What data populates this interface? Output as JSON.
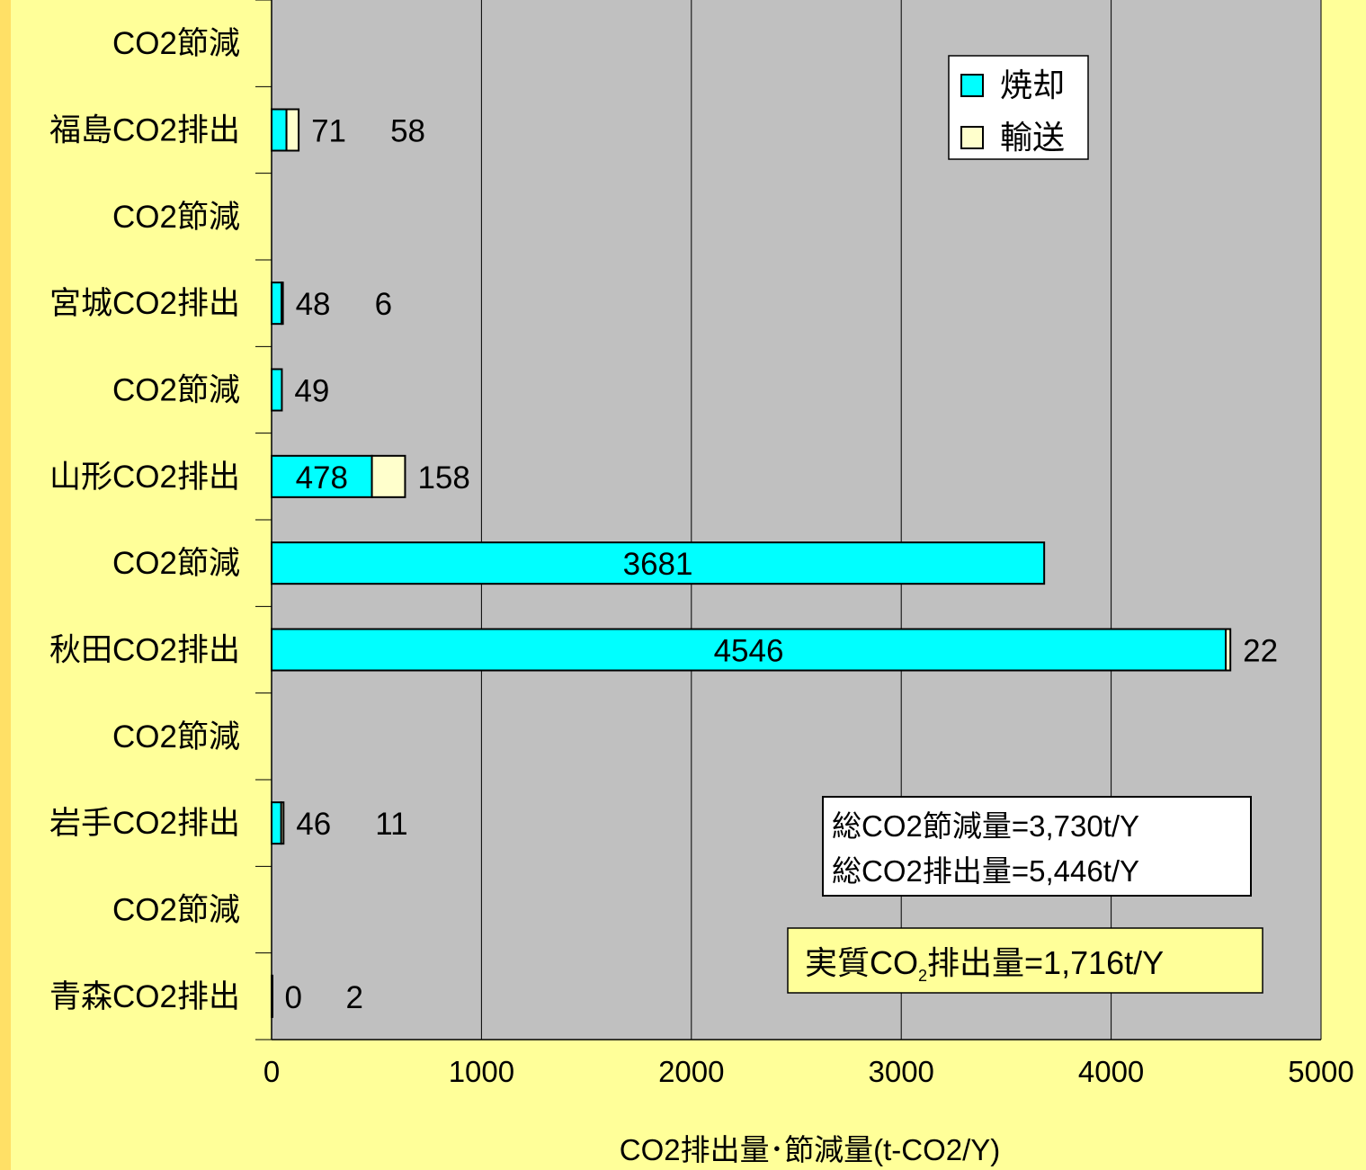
{
  "chart_data": {
    "type": "bar",
    "orientation": "horizontal",
    "stacked": true,
    "categories": [
      "CO2節減",
      "福島CO2排出",
      "CO2節減",
      "宮城CO2排出",
      "CO2節減",
      "山形CO2排出",
      "CO2節減",
      "秋田CO2排出",
      "CO2節減",
      "岩手CO2排出",
      "CO2節減",
      "青森CO2排出"
    ],
    "series": [
      {
        "name": "焼却",
        "color": "#00ffff",
        "values": [
          null,
          71,
          null,
          48,
          49,
          478,
          3681,
          4546,
          null,
          46,
          null,
          0
        ],
        "labels": [
          "",
          "71",
          "",
          "48",
          "49",
          "478",
          "3681",
          "4546",
          "",
          "46",
          "",
          "0"
        ]
      },
      {
        "name": "輸送",
        "color": "#ffffcc",
        "values": [
          null,
          58,
          null,
          6,
          null,
          158,
          null,
          22,
          null,
          11,
          null,
          2
        ],
        "labels": [
          "",
          "58",
          "",
          "6",
          "",
          "158",
          "",
          "22",
          "",
          "11",
          "",
          "2"
        ]
      }
    ],
    "xlabel": "CO2排出量･節減量(t-CO2/Y)",
    "xlim": [
      0,
      5000
    ],
    "xticks": [
      "0",
      "1000",
      "2000",
      "3000",
      "4000",
      "5000"
    ],
    "grid": true,
    "legend_position": "top-right"
  },
  "summary_box": {
    "line1": "総CO2節減量=3,730t/Y",
    "line2": "総CO2排出量=5,446t/Y"
  },
  "net_box": {
    "prefix": "実質CO",
    "subscript": "2",
    "suffix": "排出量=1,716t/Y"
  },
  "colors": {
    "plot_bg": "#c0c0c0",
    "page_bg": "#ffff99",
    "incineration": "#00ffff",
    "transport": "#ffffcc"
  }
}
